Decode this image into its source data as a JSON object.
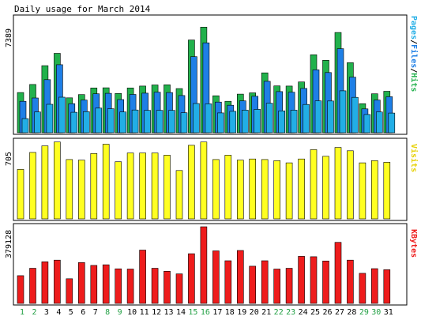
{
  "title": "Daily usage for March 2014",
  "colors": {
    "background": "#ffffff",
    "panel_border": "#000000",
    "hits": "#22b14c",
    "files": "#1e7fe6",
    "pages": "#22aee6",
    "visits": "#ffff22",
    "kbytes": "#ee1c1c",
    "weekend_label": "#22a044",
    "weekday_label": "#000000"
  },
  "chart_data": [
    {
      "type": "bar",
      "ylabel": "Pages/Files/Hits",
      "ymax_label": "7389",
      "ylim": [
        0,
        7389
      ],
      "categories": [
        "1",
        "2",
        "3",
        "4",
        "5",
        "6",
        "7",
        "8",
        "9",
        "10",
        "11",
        "12",
        "13",
        "14",
        "15",
        "16",
        "17",
        "18",
        "19",
        "20",
        "21",
        "22",
        "23",
        "24",
        "25",
        "26",
        "27",
        "28",
        "29",
        "30",
        "31"
      ],
      "series": [
        {
          "name": "Hits",
          "color": "#22b14c",
          "values": [
            2560,
            3070,
            4270,
            5050,
            2220,
            2430,
            2850,
            2860,
            2500,
            2850,
            2970,
            3040,
            3050,
            2810,
            5900,
            6720,
            2350,
            2000,
            2460,
            2540,
            3810,
            2980,
            2970,
            3230,
            4960,
            4610,
            6380,
            4460,
            1850,
            2480,
            2640
          ]
        },
        {
          "name": "Files",
          "color": "#1e7fe6",
          "values": [
            2000,
            2210,
            3380,
            4330,
            1850,
            2080,
            2480,
            2510,
            2110,
            2440,
            2520,
            2580,
            2560,
            2370,
            4840,
            5720,
            1950,
            1750,
            2030,
            2320,
            3270,
            2620,
            2580,
            2820,
            4000,
            3830,
            5350,
            3540,
            1520,
            2080,
            2290
          ]
        },
        {
          "name": "Pages",
          "color": "#22aee6",
          "values": [
            900,
            1320,
            1810,
            2260,
            1300,
            1340,
            1570,
            1530,
            1320,
            1450,
            1420,
            1420,
            1420,
            1270,
            1860,
            1840,
            1260,
            1360,
            1440,
            1490,
            1880,
            1390,
            1440,
            1800,
            2030,
            2020,
            2670,
            2250,
            1160,
            1320,
            1250
          ]
        }
      ]
    },
    {
      "type": "bar",
      "ylabel": "Visits",
      "ymax_label": "705",
      "ylim": [
        0,
        705
      ],
      "categories": [
        "1",
        "2",
        "3",
        "4",
        "5",
        "6",
        "7",
        "8",
        "9",
        "10",
        "11",
        "12",
        "13",
        "14",
        "15",
        "16",
        "17",
        "18",
        "19",
        "20",
        "21",
        "22",
        "23",
        "24",
        "25",
        "26",
        "27",
        "28",
        "29",
        "30",
        "31"
      ],
      "series": [
        {
          "name": "Visits",
          "color": "#ffff22",
          "values": [
            450,
            605,
            665,
            700,
            540,
            535,
            595,
            680,
            520,
            600,
            600,
            600,
            580,
            440,
            670,
            700,
            540,
            580,
            535,
            545,
            540,
            530,
            510,
            545,
            630,
            570,
            650,
            620,
            510,
            530,
            515
          ]
        }
      ]
    },
    {
      "type": "bar",
      "ylabel": "KBytes",
      "ymax_label": "379128",
      "ylim": [
        0,
        379128
      ],
      "categories": [
        "1",
        "2",
        "3",
        "4",
        "5",
        "6",
        "7",
        "8",
        "9",
        "10",
        "11",
        "12",
        "13",
        "14",
        "15",
        "16",
        "17",
        "18",
        "19",
        "20",
        "21",
        "22",
        "23",
        "24",
        "25",
        "26",
        "27",
        "28",
        "29",
        "30",
        "31"
      ],
      "series": [
        {
          "name": "KBytes",
          "color": "#ee1c1c",
          "values": [
            137000,
            174000,
            206000,
            214000,
            122000,
            202000,
            188000,
            191000,
            171000,
            170000,
            264000,
            174000,
            159000,
            146000,
            246000,
            379000,
            260000,
            211000,
            262000,
            184000,
            211000,
            170000,
            174000,
            233000,
            231000,
            210000,
            302000,
            214000,
            149000,
            172000,
            167000
          ]
        }
      ]
    }
  ],
  "x_axis": {
    "labels": [
      "1",
      "2",
      "3",
      "4",
      "5",
      "6",
      "7",
      "8",
      "9",
      "10",
      "11",
      "12",
      "13",
      "14",
      "15",
      "16",
      "17",
      "18",
      "19",
      "20",
      "21",
      "22",
      "23",
      "24",
      "25",
      "26",
      "27",
      "28",
      "29",
      "30",
      "31"
    ],
    "weekend_days": [
      "1",
      "2",
      "8",
      "9",
      "15",
      "16",
      "22",
      "23",
      "29",
      "30"
    ]
  }
}
